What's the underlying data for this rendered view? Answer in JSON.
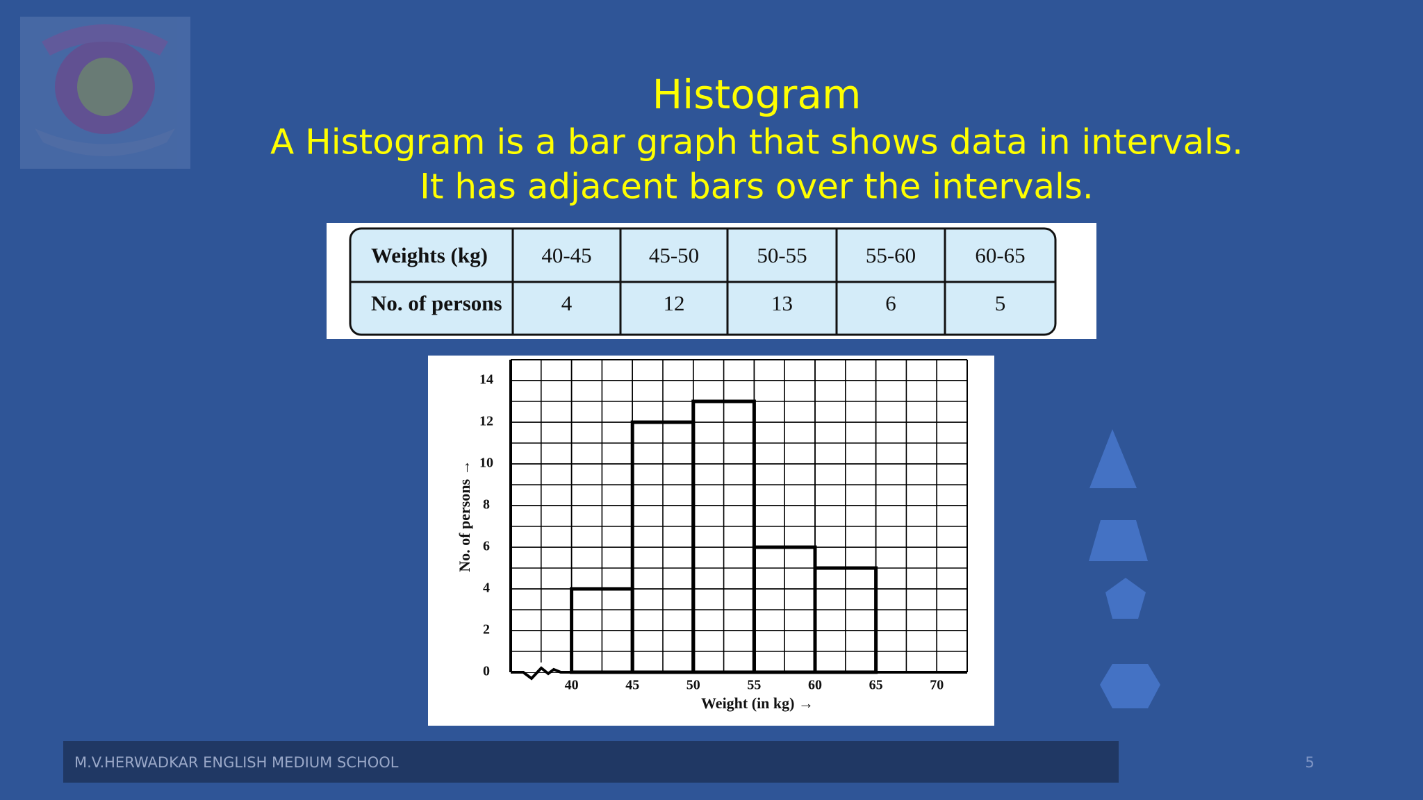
{
  "header": {
    "title": "Histogram",
    "subtitle_lines": [
      "A Histogram is a bar graph that shows data in intervals.",
      "It has adjacent bars over the intervals."
    ]
  },
  "table": {
    "rows": [
      [
        "Weights (kg)",
        "40-45",
        "45-50",
        "50-55",
        "55-60",
        "60-65"
      ],
      [
        "No. of persons",
        "4",
        "12",
        "13",
        "6",
        "5"
      ]
    ]
  },
  "chart_data": {
    "type": "histogram",
    "bins": [
      40,
      45,
      50,
      55,
      60,
      65
    ],
    "values": [
      4,
      12,
      13,
      6,
      5
    ],
    "color": "#000000",
    "xlabel": "Weight (in kg) →",
    "ylabel": "No. of persons →",
    "xlim": [
      35,
      72.5
    ],
    "ylim": [
      0,
      15
    ],
    "xticks": [
      40,
      45,
      50,
      55,
      60,
      65,
      70
    ],
    "yticks": [
      0,
      2,
      4,
      6,
      8,
      10,
      12,
      14
    ],
    "grid": true
  },
  "footer": {
    "school": "M.V.HERWADKAR ENGLISH MEDIUM SCHOOL",
    "slide_number": "5"
  }
}
